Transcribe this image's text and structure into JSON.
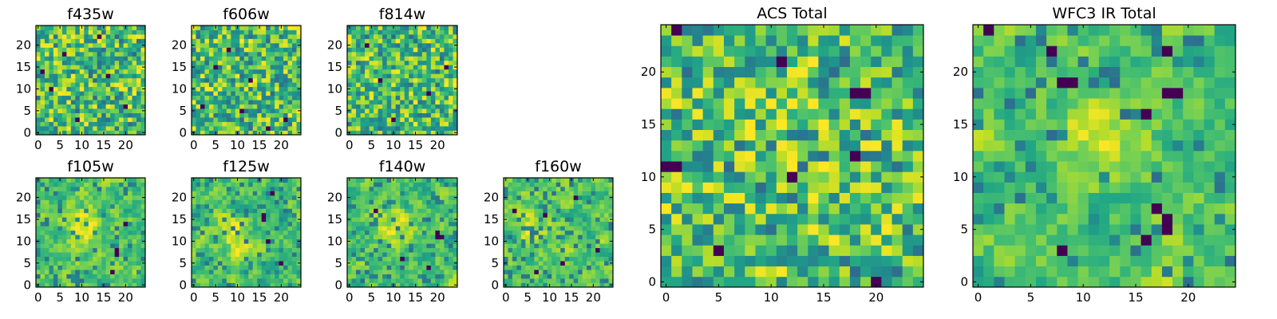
{
  "chart_data": [
    {
      "id": "f435w",
      "type": "heatmap",
      "title": "f435w",
      "grid_size": 25,
      "colormap": "viridis",
      "seed": 11,
      "smooth": 0,
      "xticks": [
        0,
        5,
        10,
        15,
        20
      ],
      "yticks": [
        0,
        5,
        10,
        15,
        20
      ],
      "xlim": [
        0,
        24
      ],
      "ylim": [
        0,
        24
      ],
      "dark_pixels": [
        [
          3,
          10
        ],
        [
          16,
          13
        ],
        [
          6,
          18
        ],
        [
          14,
          22
        ],
        [
          20,
          6
        ],
        [
          9,
          3
        ],
        [
          1,
          14
        ]
      ]
    },
    {
      "id": "f606w",
      "type": "heatmap",
      "title": "f606w",
      "grid_size": 25,
      "colormap": "viridis",
      "seed": 22,
      "smooth": 0,
      "xticks": [
        0,
        5,
        10,
        15,
        20
      ],
      "yticks": [
        0,
        5,
        10,
        15,
        20
      ],
      "xlim": [
        0,
        24
      ],
      "ylim": [
        0,
        24
      ],
      "dark_pixels": [
        [
          2,
          6
        ],
        [
          13,
          12
        ],
        [
          21,
          3
        ],
        [
          8,
          19
        ],
        [
          17,
          1
        ],
        [
          11,
          5
        ],
        [
          5,
          15
        ]
      ]
    },
    {
      "id": "f814w",
      "type": "heatmap",
      "title": "f814w",
      "grid_size": 25,
      "colormap": "viridis",
      "seed": 33,
      "smooth": 0,
      "xticks": [
        0,
        5,
        10,
        15,
        20
      ],
      "yticks": [
        0,
        5,
        10,
        15,
        20
      ],
      "xlim": [
        0,
        24
      ],
      "ylim": [
        0,
        24
      ],
      "dark_pixels": [
        [
          4,
          20
        ],
        [
          18,
          9
        ],
        [
          10,
          3
        ],
        [
          22,
          15
        ],
        [
          7,
          12
        ]
      ]
    },
    {
      "id": "f105w",
      "type": "heatmap",
      "title": "f105w",
      "grid_size": 25,
      "colormap": "viridis",
      "seed": 44,
      "smooth": 1,
      "xticks": [
        0,
        5,
        10,
        15,
        20
      ],
      "yticks": [
        0,
        5,
        10,
        15,
        20
      ],
      "xlim": [
        0,
        24
      ],
      "ylim": [
        0,
        24
      ],
      "dark_pixels": [
        [
          18,
          7
        ],
        [
          18,
          8
        ],
        [
          17,
          3
        ],
        [
          20,
          14
        ]
      ],
      "bright_region": {
        "cx": 10,
        "cy": 13,
        "r": 6
      }
    },
    {
      "id": "f125w",
      "type": "heatmap",
      "title": "f125w",
      "grid_size": 25,
      "colormap": "viridis",
      "seed": 55,
      "smooth": 1,
      "xticks": [
        0,
        5,
        10,
        15,
        20
      ],
      "yticks": [
        0,
        5,
        10,
        15,
        20
      ],
      "xlim": [
        0,
        24
      ],
      "ylim": [
        0,
        24
      ],
      "dark_pixels": [
        [
          16,
          15
        ],
        [
          16,
          16
        ],
        [
          17,
          10
        ],
        [
          20,
          5
        ],
        [
          18,
          21
        ]
      ],
      "bright_region": {
        "cx": 9,
        "cy": 12,
        "r": 6
      }
    },
    {
      "id": "f140w",
      "type": "heatmap",
      "title": "f140w",
      "grid_size": 25,
      "colormap": "viridis",
      "seed": 66,
      "smooth": 1,
      "xticks": [
        0,
        5,
        10,
        15,
        20
      ],
      "yticks": [
        0,
        5,
        10,
        15,
        20
      ],
      "xlim": [
        0,
        24
      ],
      "ylim": [
        0,
        24
      ],
      "dark_pixels": [
        [
          20,
          11
        ],
        [
          21,
          11
        ],
        [
          20,
          12
        ],
        [
          18,
          4
        ],
        [
          12,
          6
        ],
        [
          6,
          17
        ]
      ],
      "bright_region": {
        "cx": 10,
        "cy": 13,
        "r": 6
      }
    },
    {
      "id": "f160w",
      "type": "heatmap",
      "title": "f160w",
      "grid_size": 25,
      "colormap": "viridis",
      "seed": 77,
      "smooth": 1,
      "xticks": [
        0,
        5,
        10,
        15,
        20
      ],
      "yticks": [
        0,
        5,
        10,
        15,
        20
      ],
      "xlim": [
        0,
        24
      ],
      "ylim": [
        0,
        24
      ],
      "dark_pixels": [
        [
          9,
          16
        ],
        [
          16,
          20
        ],
        [
          2,
          17
        ],
        [
          13,
          5
        ],
        [
          21,
          8
        ],
        [
          7,
          3
        ]
      ],
      "bright_region": {
        "cx": 6,
        "cy": 13,
        "r": 5
      }
    },
    {
      "id": "acs_total",
      "type": "heatmap",
      "title": "ACS Total",
      "grid_size": 25,
      "colormap": "viridis",
      "seed": 88,
      "smooth": 0,
      "xticks": [
        0,
        5,
        10,
        15,
        20
      ],
      "yticks": [
        0,
        5,
        10,
        15,
        20
      ],
      "xlim": [
        0,
        24
      ],
      "ylim": [
        0,
        24
      ],
      "dark_pixels": [
        [
          1,
          24
        ],
        [
          11,
          21
        ],
        [
          18,
          18
        ],
        [
          19,
          18
        ],
        [
          18,
          12
        ],
        [
          0,
          11
        ],
        [
          1,
          11
        ],
        [
          12,
          10
        ],
        [
          5,
          3
        ],
        [
          20,
          0
        ]
      ],
      "bright_region": {
        "cx": 12,
        "cy": 13,
        "r": 5
      }
    },
    {
      "id": "wfc3_ir_total",
      "type": "heatmap",
      "title": "WFC3 IR Total",
      "grid_size": 25,
      "colormap": "viridis",
      "seed": 99,
      "smooth": 1,
      "xticks": [
        0,
        5,
        10,
        15,
        20
      ],
      "yticks": [
        0,
        5,
        10,
        15,
        20
      ],
      "xlim": [
        0,
        24
      ],
      "ylim": [
        0,
        24
      ],
      "dark_pixels": [
        [
          1,
          24
        ],
        [
          7,
          22
        ],
        [
          18,
          22
        ],
        [
          8,
          19
        ],
        [
          9,
          19
        ],
        [
          18,
          18
        ],
        [
          19,
          18
        ],
        [
          16,
          16
        ],
        [
          17,
          7
        ],
        [
          18,
          6
        ],
        [
          18,
          5
        ],
        [
          16,
          4
        ],
        [
          8,
          3
        ]
      ],
      "bright_region": {
        "cx": 12,
        "cy": 13,
        "r": 6
      }
    }
  ]
}
